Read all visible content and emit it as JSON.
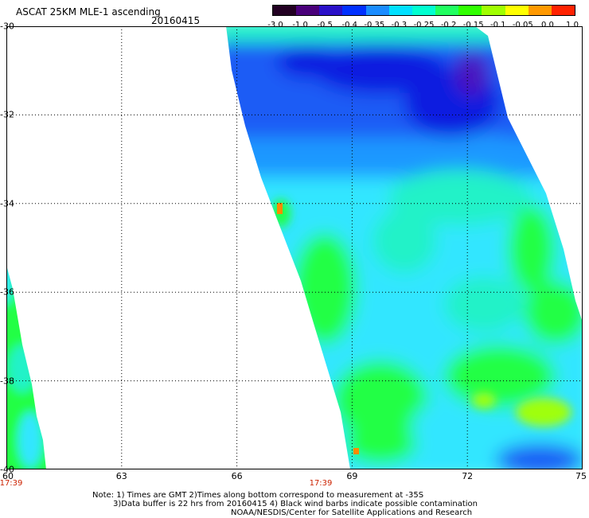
{
  "header": {
    "title": "ASCAT 25KM MLE-1 ascending",
    "date": "20160415"
  },
  "colorbar": {
    "labels": [
      "-3.0",
      "-1.0",
      "-0.5",
      "-0.4",
      "-0.35",
      "-0.3",
      "-0.25",
      "-0.2",
      "-0.15",
      "-0.1",
      "-0.05",
      "0.0",
      "1.0"
    ],
    "colors": [
      "#220022",
      "#4a007a",
      "#2a10c8",
      "#0030ff",
      "#1a8cff",
      "#00e0ff",
      "#00ffd0",
      "#20ff60",
      "#30ff00",
      "#a0ff00",
      "#ffff00",
      "#ff9900",
      "#ff2200"
    ]
  },
  "map": {
    "lat_labels": [
      "-30",
      "-32",
      "-34",
      "-36",
      "-38",
      "-40"
    ],
    "lon_labels": [
      "60",
      "63",
      "66",
      "69",
      "72",
      "75"
    ],
    "time_labels": [
      "17:39",
      "17:39"
    ],
    "colors": {
      "deep_blue": "#0a1ae0",
      "blue": "#1f5cf5",
      "light_blue": "#1a98ff",
      "cyan": "#33e6ff",
      "aqua": "#22f2c8",
      "green": "#22ff44",
      "yellow_green": "#9fff10",
      "purple": "#4a14c0",
      "orange": "#ff8a00"
    }
  },
  "notes": {
    "line1": "Note: 1) Times are GMT 2)Times along bottom correspond to measurement at -35S",
    "line2": "3)Data buffer is 22 hrs from 20160415 4) Black wind barbs indicate possible contamination",
    "line3": "NOAA/NESDIS/Center for Satellite Applications and Research"
  }
}
